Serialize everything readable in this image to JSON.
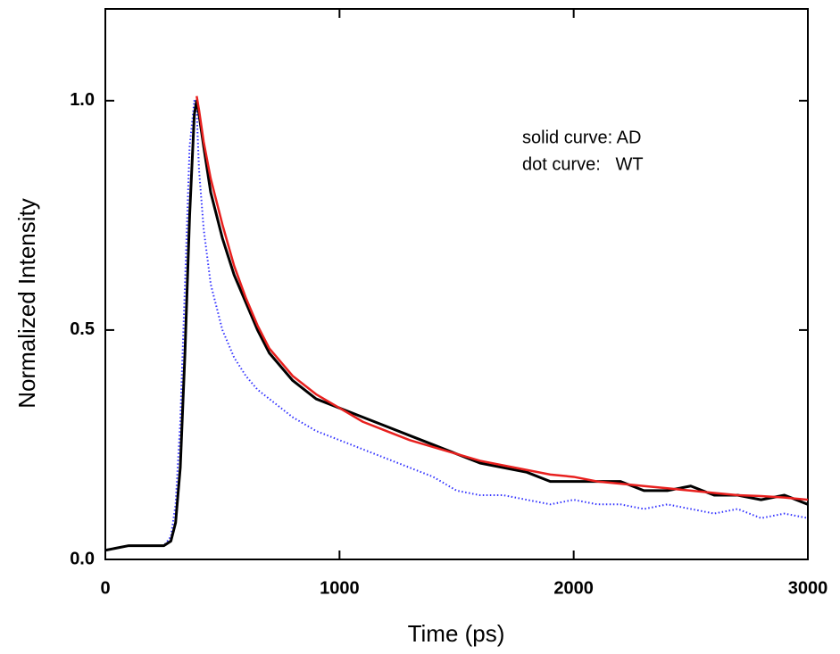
{
  "chart_data": {
    "type": "line",
    "xlabel": "Time (ps)",
    "ylabel": "Normalized Intensity",
    "annotations": [
      "solid curve: AD",
      "dot curve:   WT"
    ],
    "x": [
      0,
      100,
      200,
      250,
      280,
      300,
      320,
      340,
      360,
      380,
      390,
      400,
      420,
      450,
      500,
      550,
      600,
      650,
      700,
      800,
      900,
      1000,
      1100,
      1200,
      1300,
      1400,
      1500,
      1600,
      1700,
      1800,
      1900,
      2000,
      2100,
      2200,
      2300,
      2400,
      2500,
      2600,
      2700,
      2800,
      2900,
      3000
    ],
    "series": [
      {
        "color": "#3333ff",
        "style": "dotted",
        "values": [
          0.02,
          0.03,
          0.03,
          0.03,
          0.05,
          0.12,
          0.3,
          0.6,
          0.9,
          1.0,
          0.98,
          0.85,
          0.72,
          0.6,
          0.5,
          0.44,
          0.4,
          0.37,
          0.35,
          0.31,
          0.28,
          0.26,
          0.24,
          0.22,
          0.2,
          0.18,
          0.15,
          0.14,
          0.14,
          0.13,
          0.12,
          0.13,
          0.12,
          0.12,
          0.11,
          0.12,
          0.11,
          0.1,
          0.11,
          0.09,
          0.1,
          0.09
        ]
      },
      {
        "color": "#000000",
        "style": "solid",
        "values": [
          0.02,
          0.03,
          0.03,
          0.03,
          0.04,
          0.08,
          0.2,
          0.45,
          0.75,
          0.97,
          1.0,
          0.97,
          0.9,
          0.8,
          0.7,
          0.62,
          0.56,
          0.5,
          0.45,
          0.39,
          0.35,
          0.33,
          0.31,
          0.29,
          0.27,
          0.25,
          0.23,
          0.21,
          0.2,
          0.19,
          0.17,
          0.17,
          0.17,
          0.17,
          0.15,
          0.15,
          0.16,
          0.14,
          0.14,
          0.13,
          0.14,
          0.12
        ]
      },
      {
        "color": "#e8201e",
        "style": "solid",
        "values": [
          null,
          null,
          null,
          null,
          null,
          null,
          null,
          null,
          null,
          null,
          1.01,
          0.98,
          0.91,
          0.83,
          0.73,
          0.64,
          0.57,
          0.51,
          0.46,
          0.4,
          0.36,
          0.33,
          0.3,
          0.28,
          0.26,
          0.245,
          0.23,
          0.215,
          0.205,
          0.195,
          0.185,
          0.18,
          0.17,
          0.165,
          0.16,
          0.155,
          0.15,
          0.145,
          0.14,
          0.138,
          0.135,
          0.13
        ]
      }
    ],
    "xlim": [
      0,
      3000
    ],
    "xticks": [
      0,
      1000,
      2000,
      3000
    ],
    "ylim": [
      0,
      1.2
    ],
    "yticks": [
      {
        "value": 0,
        "label": "0.0"
      },
      {
        "value": 0.5,
        "label": "0.5"
      },
      {
        "value": 1,
        "label": "1.0"
      }
    ]
  }
}
